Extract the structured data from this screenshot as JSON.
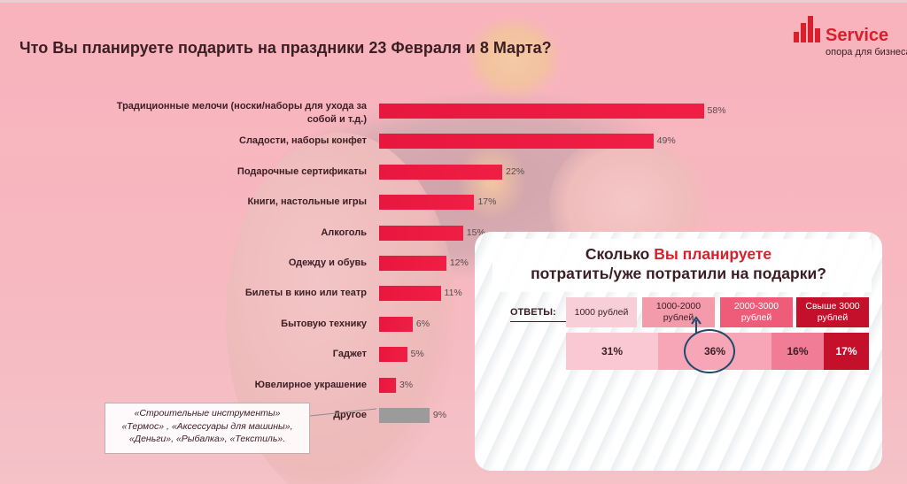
{
  "title": "Что Вы планируете подарить на праздники 23 Февраля и 8 Марта?",
  "logo": {
    "word": "Service",
    "tagline": "опора для бизнеса",
    "color": "#d8202c"
  },
  "chart_data": {
    "type": "bar",
    "orientation": "horizontal",
    "unit": "%",
    "xlim": [
      0,
      60
    ],
    "grid": false,
    "categories": [
      "Традиционные мелочи (носки/наборы для ухода за собой и т.д.)",
      "Сладости, наборы конфет",
      "Подарочные сертификаты",
      "Книги, настольные игры",
      "Алкоголь",
      "Одежду и обувь",
      "Билеты в кино или театр",
      "Бытовую технику",
      "Гаджет",
      "Ювелирное украшение",
      "Другое"
    ],
    "values": [
      58,
      49,
      22,
      17,
      15,
      12,
      11,
      6,
      5,
      3,
      9
    ],
    "value_labels": [
      "58%",
      "49%",
      "22%",
      "17%",
      "15%",
      "12%",
      "11%",
      "6%",
      "5%",
      "3%",
      "9%"
    ],
    "colors": [
      "#e8173f",
      "#e8173f",
      "#e8173f",
      "#e8173f",
      "#e8173f",
      "#e8173f",
      "#e8173f",
      "#e8173f",
      "#e8173f",
      "#e8173f",
      "#9b9b9b"
    ]
  },
  "note": {
    "lines": [
      "«Строительные инструменты»",
      "«Термос» , «Аксессуары для машины»,",
      "«Деньги», «Рыбалка», «Текстиль»."
    ]
  },
  "spend_panel": {
    "title_part1": "Сколько ",
    "title_highlight": "Вы планируете",
    "title_line2": "потратить/уже потратили на подарки?",
    "answers_label": "ОТВЕТЫ:",
    "options": [
      "1000 рублей",
      "1000-2000 рублей",
      "2000-3000 рублей",
      "Свыше 3000 рублей"
    ],
    "percent_labels": [
      "31%",
      "36%",
      "16%",
      "17%"
    ],
    "values": [
      31,
      36,
      16,
      17
    ],
    "highlighted_option": "36%"
  }
}
